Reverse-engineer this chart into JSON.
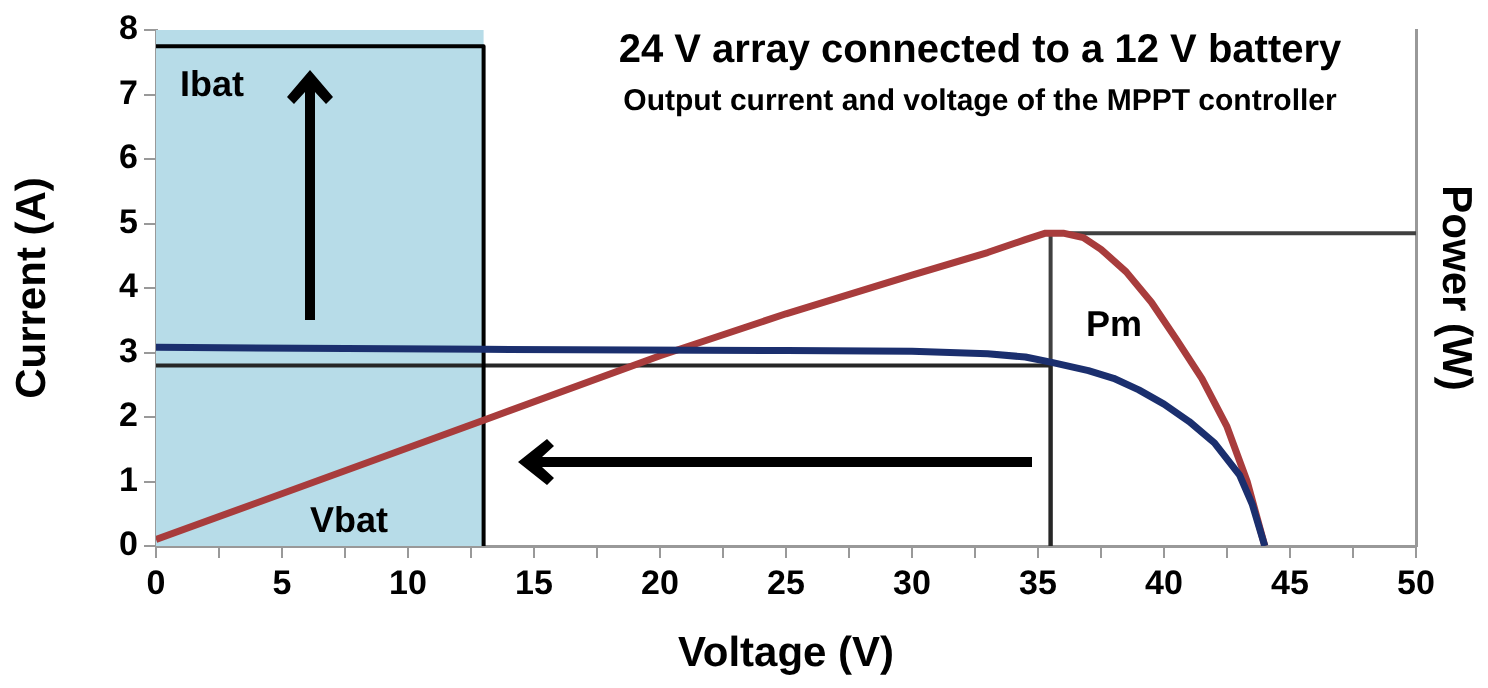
{
  "chart_data": {
    "type": "line",
    "title": "24 V array connected to a 12 V battery",
    "subtitle": "Output current and voltage of the MPPT controller",
    "xlabel": "Voltage (V)",
    "ylabel": "Current (A)",
    "y2label": "Power (W)",
    "xlim": [
      0,
      50
    ],
    "xticks": [
      0,
      {
        "value": 2.5,
        "label": null
      },
      5,
      {
        "value": 7.5,
        "label": null
      },
      10,
      {
        "value": 12.5,
        "label": null
      },
      15,
      {
        "value": 17.5,
        "label": null
      },
      20,
      {
        "value": 22.5,
        "label": null
      },
      25,
      {
        "value": 27.5,
        "label": null
      },
      30,
      {
        "value": 32.5,
        "label": null
      },
      35,
      {
        "value": 37.5,
        "label": null
      },
      40,
      {
        "value": 42.5,
        "label": null
      },
      45,
      {
        "value": 47.5,
        "label": null
      },
      50
    ],
    "ylim": [
      0,
      8
    ],
    "yticks": [
      0,
      1,
      2,
      3,
      4,
      5,
      6,
      7,
      8
    ],
    "grid": false,
    "legend": false,
    "marker": "none",
    "line_style": "solid",
    "series": [
      {
        "color": "#1b2f6e",
        "x": [
          0,
          13,
          25,
          30,
          33,
          34.5,
          35.5,
          37,
          38,
          39,
          40,
          41,
          42,
          43,
          43.5,
          44
        ],
        "values": [
          3.08,
          3.05,
          3.03,
          3.02,
          2.98,
          2.93,
          2.85,
          2.72,
          2.6,
          2.42,
          2.2,
          1.93,
          1.6,
          1.1,
          0.65,
          0
        ]
      },
      {
        "color": "#a83c3c",
        "x": [
          0,
          13,
          20,
          25,
          30,
          33,
          34.5,
          35.3,
          36,
          36.8,
          37.5,
          38.5,
          39.5,
          40.5,
          41.5,
          42.5,
          43.3,
          44
        ],
        "values": [
          0.1,
          1.95,
          2.95,
          3.6,
          4.2,
          4.55,
          4.75,
          4.85,
          4.85,
          4.78,
          4.6,
          4.25,
          3.78,
          3.2,
          2.6,
          1.85,
          1.0,
          0
        ]
      },
      {
        "color": "#000000",
        "x": [
          0,
          13,
          13
        ],
        "values": [
          7.75,
          7.75,
          0
        ]
      },
      {
        "color": "#262626",
        "x": [
          0,
          35.5,
          35.5
        ],
        "values": [
          2.8,
          2.8,
          0
        ]
      },
      {
        "color": "#404040",
        "x": [
          35.5,
          35.5,
          50
        ],
        "values": [
          0,
          4.85,
          4.85
        ]
      }
    ],
    "bands": [
      {
        "axis": "x",
        "from": 0,
        "to": 13,
        "color": "#b7dce8"
      }
    ],
    "annotations": [
      "Ibat",
      "Vbat",
      "Pm"
    ]
  }
}
